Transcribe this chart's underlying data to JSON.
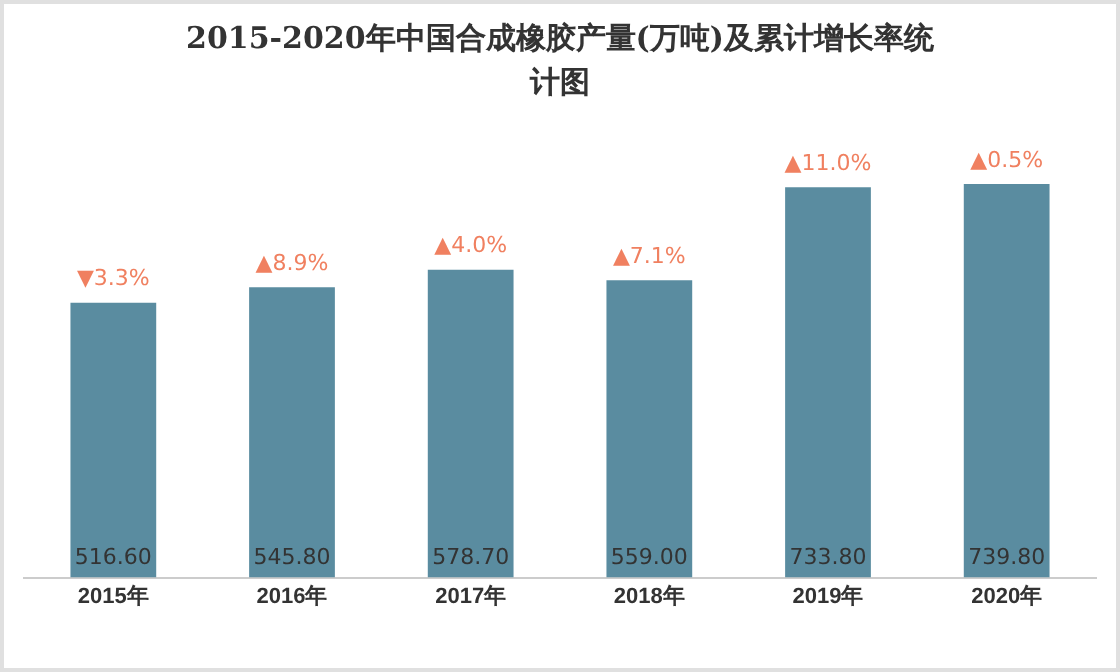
{
  "chart_data": {
    "type": "bar",
    "title": "2015-2020年中国合成橡胶产量(万吨)及累计增长率统计图",
    "categories": [
      "2015年",
      "2016年",
      "2017年",
      "2018年",
      "2019年",
      "2020年"
    ],
    "values": [
      516.6,
      545.8,
      578.7,
      559.0,
      733.8,
      739.8
    ],
    "value_labels": [
      "516.60",
      "545.80",
      "578.70",
      "559.00",
      "733.80",
      "739.80"
    ],
    "color": "#5a8ca0",
    "tick_labels": "x",
    "annotations": [
      {
        "text": "▼3.3%",
        "x": "2015年",
        "y": 516.6
      },
      {
        "text": "▲8.9%",
        "x": "2016年",
        "y": 545.8
      },
      {
        "text": "▲4.0%",
        "x": "2017年",
        "y": 578.7
      },
      {
        "text": "▲7.1%",
        "x": "2018年",
        "y": 559.0
      },
      {
        "text": "▲11.0%",
        "x": "2019年",
        "y": 733.8
      },
      {
        "text": "▲0.5%",
        "x": "2020年",
        "y": 739.8
      }
    ],
    "grid": false,
    "legend": false
  }
}
